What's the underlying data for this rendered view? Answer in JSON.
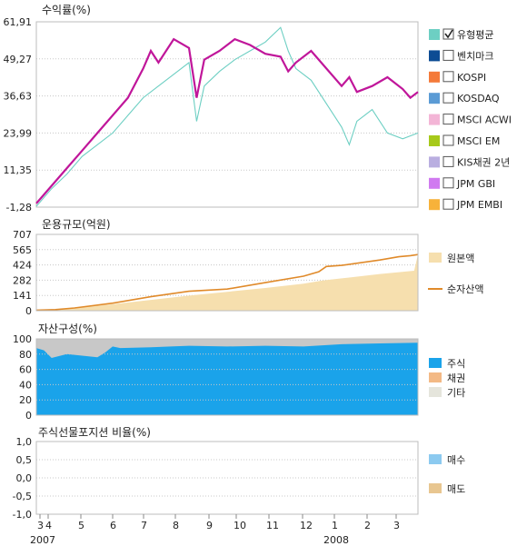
{
  "colors": {
    "fund": "#c0169a",
    "fund_dark": "#7a1070",
    "bench_teal": "#6dcfc3",
    "original_area": "#f6dfae",
    "net_asset": "#e08a2a",
    "stock": "#1aa3ea",
    "bond": "#f3b985",
    "other": "#c8c8c8",
    "buy": "#8ccaf0",
    "sell": "#e8c690"
  },
  "chart_data": [
    {
      "type": "line",
      "title": "수익률(%)",
      "yticks": [
        "61,91",
        "49,27",
        "36,63",
        "23,99",
        "11,35",
        "-1,28"
      ],
      "ylim": [
        -1.28,
        61.91
      ],
      "series": [
        {
          "name": "유형평균",
          "checked": true,
          "color": "#6dcfc3",
          "x": [
            0,
            0.04,
            0.08,
            0.12,
            0.16,
            0.2,
            0.24,
            0.28,
            0.32,
            0.36,
            0.4,
            0.42,
            0.44,
            0.48,
            0.52,
            0.56,
            0.6,
            0.64,
            0.66,
            0.68,
            0.72,
            0.76,
            0.8,
            0.82,
            0.84,
            0.88,
            0.92,
            0.96,
            1
          ],
          "y": [
            -1,
            5,
            10,
            16,
            20,
            24,
            30,
            36,
            40,
            44,
            48,
            28,
            40,
            45,
            49,
            52,
            55,
            60,
            52,
            46,
            42,
            34,
            26,
            20,
            28,
            32,
            24,
            22,
            24
          ]
        },
        {
          "name": "",
          "checked": true,
          "color": "#c0169a",
          "x": [
            0,
            0.04,
            0.08,
            0.12,
            0.16,
            0.2,
            0.24,
            0.28,
            0.3,
            0.32,
            0.36,
            0.4,
            0.42,
            0.44,
            0.48,
            0.52,
            0.56,
            0.6,
            0.64,
            0.66,
            0.68,
            0.72,
            0.76,
            0.8,
            0.82,
            0.84,
            0.88,
            0.92,
            0.96,
            0.98,
            1
          ],
          "y": [
            0,
            6,
            12,
            18,
            24,
            30,
            36,
            46,
            52,
            48,
            56,
            53,
            36,
            49,
            52,
            56,
            54,
            51,
            50,
            45,
            48,
            52,
            46,
            40,
            43,
            38,
            40,
            43,
            39,
            36,
            38
          ]
        }
      ],
      "legend": [
        {
          "label": "유형평균",
          "color": "#6dcfc3",
          "checked": true
        },
        {
          "label": "벤치마크",
          "color": "#0d4c94",
          "checked": false
        },
        {
          "label": "KOSPI",
          "color": "#f47a3a",
          "checked": false
        },
        {
          "label": "KOSDAQ",
          "color": "#5b9bd5",
          "checked": false
        },
        {
          "label": "MSCI ACWI",
          "color": "#f3b5d6",
          "checked": false
        },
        {
          "label": "MSCI EM",
          "color": "#a6c91a",
          "checked": false
        },
        {
          "label": "KIS채권 2년",
          "color": "#b9aee0",
          "checked": false
        },
        {
          "label": "JPM GBI",
          "color": "#d07af0",
          "checked": false
        },
        {
          "label": "JPM EMBI",
          "color": "#f7b23a",
          "checked": false
        }
      ]
    },
    {
      "type": "area",
      "title": "운용규모(억원)",
      "yticks": [
        "707",
        "565",
        "424",
        "282",
        "141",
        "0"
      ],
      "ylim": [
        0,
        707
      ],
      "series": [
        {
          "name": "원본액",
          "color": "#f6dfae",
          "x": [
            0,
            0.05,
            0.1,
            0.2,
            0.3,
            0.4,
            0.5,
            0.6,
            0.7,
            0.75,
            0.8,
            0.9,
            0.99,
            1
          ],
          "y": [
            5,
            10,
            25,
            60,
            100,
            140,
            175,
            210,
            250,
            280,
            300,
            340,
            370,
            520
          ]
        },
        {
          "name": "순자산액",
          "color": "#e08a2a",
          "x": [
            0,
            0.05,
            0.1,
            0.2,
            0.3,
            0.4,
            0.5,
            0.6,
            0.7,
            0.74,
            0.76,
            0.8,
            0.9,
            0.95,
            0.98,
            1
          ],
          "y": [
            5,
            10,
            25,
            70,
            130,
            180,
            200,
            260,
            320,
            360,
            410,
            420,
            470,
            500,
            510,
            520
          ]
        }
      ]
    },
    {
      "type": "area",
      "title": "자산구성(%)",
      "yticks": [
        "100",
        "80",
        "60",
        "40",
        "20",
        "0"
      ],
      "ylim": [
        0,
        100
      ],
      "series": [
        {
          "name": "주식",
          "color": "#1aa3ea",
          "x": [
            0,
            0.02,
            0.04,
            0.08,
            0.12,
            0.16,
            0.18,
            0.2,
            0.22,
            0.3,
            0.4,
            0.5,
            0.6,
            0.7,
            0.8,
            0.9,
            1
          ],
          "y": [
            88,
            85,
            75,
            80,
            78,
            76,
            82,
            90,
            88,
            89,
            91,
            90,
            91,
            90,
            93,
            94,
            95
          ]
        },
        {
          "name": "채권",
          "color": "#f3b985",
          "x": [
            0,
            1
          ],
          "y": [
            0,
            0
          ]
        },
        {
          "name": "기타",
          "color": "#c8c8c8",
          "x": [
            0,
            1
          ],
          "y": [
            100,
            100
          ]
        }
      ]
    },
    {
      "type": "bar",
      "title": "주식선물포지션 비율(%)",
      "yticks": [
        "1,0",
        "0,5",
        "0,0",
        "-0,5",
        "-1,0"
      ],
      "ylim": [
        -1,
        1
      ],
      "series": [
        {
          "name": "매수",
          "color": "#8ccaf0",
          "values": []
        },
        {
          "name": "매도",
          "color": "#e8c690",
          "values": []
        }
      ]
    }
  ],
  "x_axis": {
    "labels": [
      "3",
      "4",
      "5",
      "6",
      "7",
      "8",
      "9",
      "10",
      "11",
      "12",
      "1",
      "2",
      "3"
    ],
    "years": [
      "2007",
      "2008"
    ]
  }
}
